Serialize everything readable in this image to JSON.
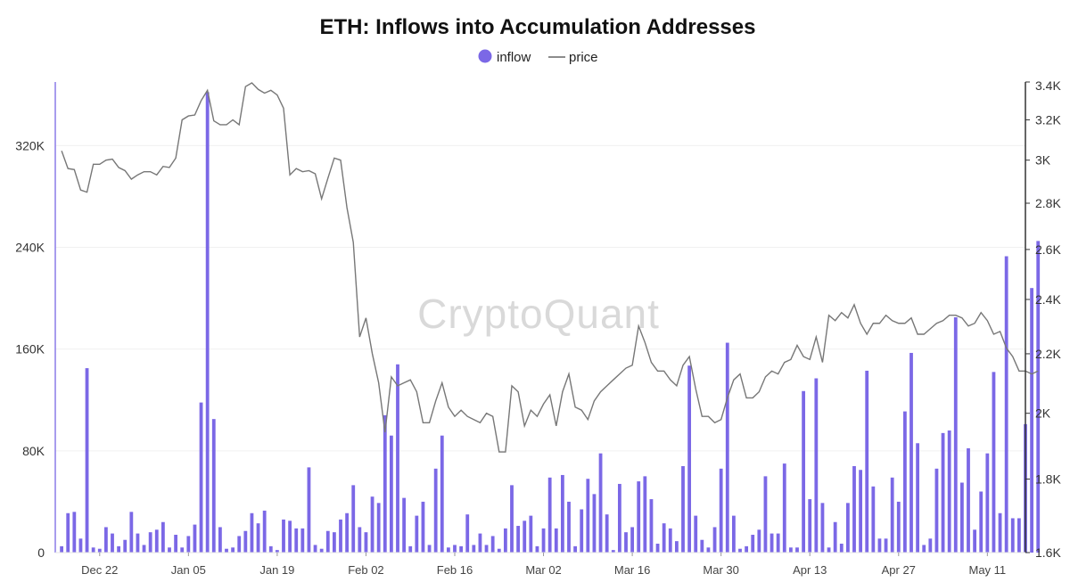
{
  "chart_data": {
    "type": "bar",
    "title": "ETH: Inflows into Accumulation Addresses",
    "watermark": "CryptoQuant",
    "legend": {
      "position": "top-center",
      "items": [
        {
          "label": "inflow",
          "marker": "circle",
          "color": "#7b68e6"
        },
        {
          "label": "price",
          "marker": "line",
          "color": "#666666"
        }
      ]
    },
    "x_start": "2024-12-16",
    "x_ticks": [
      "Dec 22",
      "Jan 05",
      "Jan 19",
      "Feb 02",
      "Feb 16",
      "Mar 02",
      "Mar 16",
      "Mar 30",
      "Apr 13",
      "Apr 27",
      "May 11"
    ],
    "xlim": [
      "2024-12-15",
      "2025-05-17"
    ],
    "y_left": {
      "label": "",
      "ylim": [
        0,
        370000
      ],
      "ticks": [
        0,
        80000,
        160000,
        240000,
        320000
      ],
      "tick_labels": [
        "0",
        "80K",
        "160K",
        "240K",
        "320K"
      ]
    },
    "y_right": {
      "label": "",
      "scale": "log",
      "ylim": [
        1600,
        3400
      ],
      "ticks": [
        1600,
        1800,
        2000,
        2200,
        2400,
        2600,
        2800,
        3000,
        3200,
        3400
      ],
      "tick_labels": [
        "1.6K",
        "1.8K",
        "2K",
        "2.2K",
        "2.4K",
        "2.6K",
        "2.8K",
        "3K",
        "3.2K",
        "3.4K"
      ]
    },
    "series": [
      {
        "name": "inflow",
        "type": "bar",
        "color": "#7b68e6",
        "values": [
          5000,
          31000,
          32000,
          11000,
          145000,
          4000,
          3000,
          20000,
          15000,
          5000,
          10000,
          32000,
          15000,
          6000,
          16000,
          18000,
          24000,
          4000,
          14000,
          4000,
          13000,
          22000,
          118000,
          362000,
          105000,
          20000,
          3000,
          4000,
          13000,
          17000,
          31000,
          23000,
          33000,
          5000,
          2000,
          26000,
          25000,
          19000,
          19000,
          67000,
          6000,
          3000,
          17000,
          16000,
          26000,
          31000,
          53000,
          20000,
          16000,
          44000,
          39000,
          108000,
          92000,
          148000,
          43000,
          5000,
          29000,
          40000,
          6000,
          66000,
          92000,
          4000,
          6000,
          5000,
          30000,
          6000,
          15000,
          6000,
          13000,
          3000,
          19000,
          53000,
          21000,
          25000,
          29000,
          5000,
          19000,
          59000,
          19000,
          61000,
          40000,
          5000,
          34000,
          58000,
          46000,
          78000,
          30000,
          2000,
          54000,
          16000,
          20000,
          56000,
          60000,
          42000,
          7000,
          23000,
          19000,
          9000,
          68000,
          147000,
          29000,
          10000,
          4000,
          20000,
          66000,
          165000,
          29000,
          3000,
          5000,
          14000,
          18000,
          60000,
          15000,
          15000,
          70000,
          4000,
          4000,
          127000,
          42000,
          137000,
          39000,
          4000,
          24000,
          7000,
          39000,
          68000,
          65000,
          143000,
          52000,
          11000,
          11000,
          59000,
          40000,
          111000,
          157000,
          86000,
          6000,
          11000,
          66000,
          94000,
          96000,
          185000,
          55000,
          82000,
          18000,
          48000,
          78000,
          142000,
          31000,
          233000,
          27000,
          27000,
          101000,
          208000,
          245000
        ]
      },
      {
        "name": "price",
        "type": "line",
        "color": "#666666",
        "values": [
          3045,
          2960,
          2955,
          2860,
          2850,
          2980,
          2980,
          3000,
          3005,
          2965,
          2950,
          2910,
          2930,
          2945,
          2945,
          2930,
          2970,
          2965,
          3010,
          3200,
          3220,
          3225,
          3300,
          3355,
          3195,
          3175,
          3175,
          3200,
          3175,
          3375,
          3395,
          3360,
          3340,
          3355,
          3330,
          3260,
          2930,
          2960,
          2945,
          2950,
          2935,
          2820,
          2915,
          3010,
          3000,
          2780,
          2630,
          2260,
          2330,
          2200,
          2100,
          1940,
          2120,
          2090,
          2100,
          2110,
          2070,
          1970,
          1970,
          2040,
          2100,
          2020,
          1990,
          2010,
          1990,
          1980,
          1970,
          2000,
          1990,
          1880,
          1880,
          2090,
          2070,
          1960,
          2010,
          1990,
          2030,
          2060,
          1960,
          2070,
          2130,
          2020,
          2010,
          1980,
          2040,
          2070,
          2090,
          2110,
          2130,
          2150,
          2160,
          2300,
          2240,
          2170,
          2140,
          2140,
          2110,
          2090,
          2160,
          2190,
          2080,
          1990,
          1990,
          1970,
          1980,
          2050,
          2110,
          2130,
          2050,
          2050,
          2070,
          2120,
          2140,
          2130,
          2170,
          2180,
          2230,
          2190,
          2180,
          2260,
          2170,
          2340,
          2320,
          2350,
          2330,
          2380,
          2310,
          2270,
          2310,
          2310,
          2340,
          2320,
          2310,
          2310,
          2330,
          2270,
          2270,
          2290,
          2310,
          2320,
          2340,
          2340,
          2330,
          2300,
          2310,
          2350,
          2320,
          2270,
          2280,
          2220,
          2190,
          2140,
          2140,
          2130,
          2140
        ]
      }
    ]
  }
}
